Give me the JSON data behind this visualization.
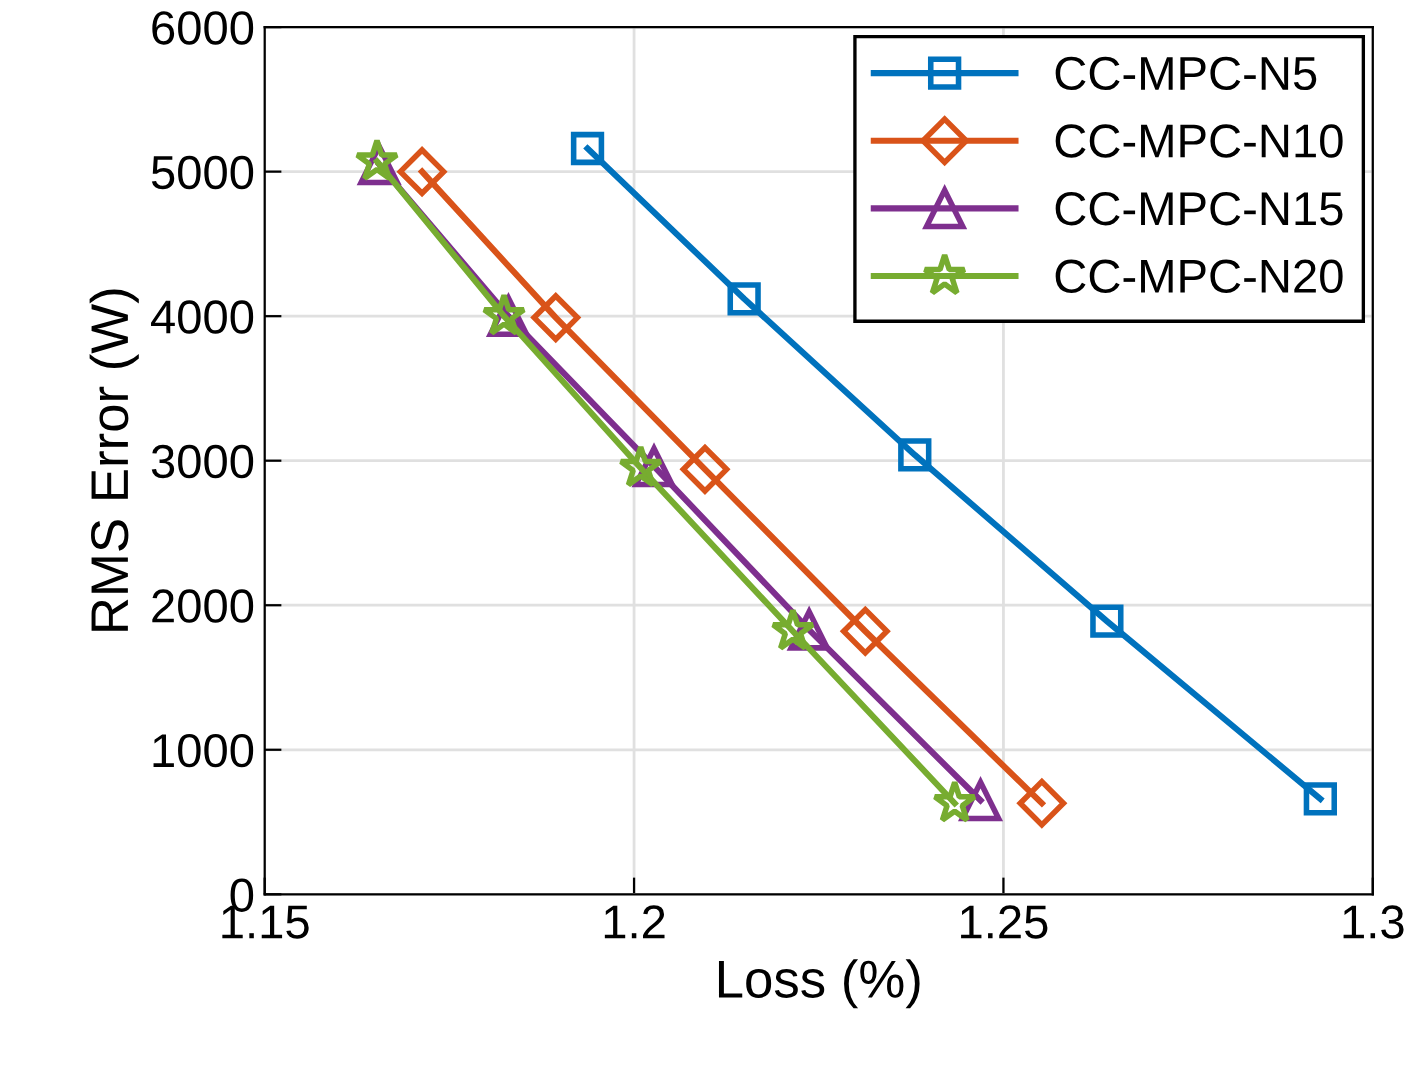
{
  "chart_data": {
    "type": "line",
    "xlabel": "Loss (%)",
    "ylabel": "RMS Error (W)",
    "xlim": [
      1.15,
      1.3
    ],
    "xticks": [
      1.15,
      1.2,
      1.25,
      1.3
    ],
    "ylim": [
      0,
      6000
    ],
    "yticks": [
      0,
      1000,
      2000,
      3000,
      4000,
      5000,
      6000
    ],
    "grid": true,
    "legend": "top right",
    "line_style": "solid",
    "series": [
      {
        "name": "CC-MPC-N5",
        "color": "#0072bd",
        "marker": "square",
        "x": [
          1.1937,
          1.2149,
          1.238,
          1.264,
          1.2929
        ],
        "values": [
          5160,
          4120,
          3040,
          1890,
          660
        ]
      },
      {
        "name": "CC-MPC-N10",
        "color": "#d95319",
        "marker": "diamond",
        "x": [
          1.1713,
          1.1894,
          1.2096,
          1.2313,
          1.2552
        ],
        "values": [
          5000,
          3990,
          2940,
          1820,
          630
        ]
      },
      {
        "name": "CC-MPC-N15",
        "color": "#7e2f8e",
        "marker": "triangle",
        "x": [
          1.1655,
          1.183,
          1.2027,
          1.2237,
          1.2469
        ],
        "values": [
          5050,
          4000,
          2960,
          1830,
          650
        ]
      },
      {
        "name": "CC-MPC-N20",
        "color": "#77ac30",
        "marker": "star",
        "x": [
          1.1652,
          1.1824,
          1.2009,
          1.2215,
          1.2434
        ],
        "values": [
          5070,
          4000,
          2950,
          1820,
          630
        ]
      }
    ]
  }
}
